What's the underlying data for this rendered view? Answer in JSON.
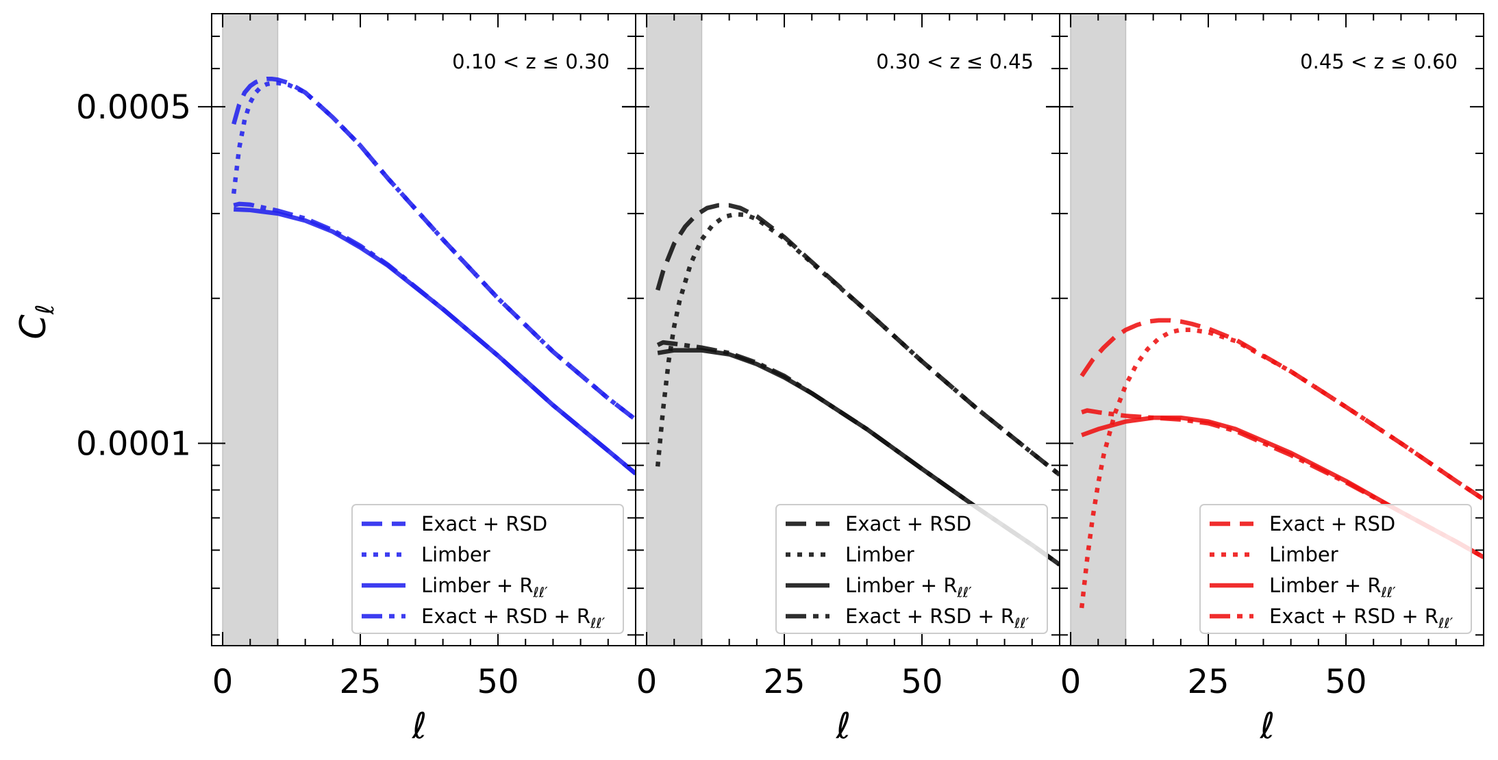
{
  "chart_data": {
    "type": "line",
    "ylabel": "C_ℓ",
    "xlabel": "ℓ",
    "yscale": "log",
    "ylim": [
      3.8e-05,
      0.00078
    ],
    "xlim": [
      -2,
      75
    ],
    "xticks": [
      "0",
      "25",
      "50"
    ],
    "yticks": [
      {
        "value": 0.0005,
        "label": "0.0005"
      },
      {
        "value": 0.0001,
        "label": "0.0001"
      }
    ],
    "shaded_region": [
      0,
      10
    ],
    "legend_labels": [
      "Exact + RSD",
      "Limber",
      "Limber + R",
      "Exact + RSD + R"
    ],
    "legend_subscript": "ℓℓ′",
    "panels": [
      {
        "z_label": "0.10 < z ≤ 0.30",
        "color": "#2222ee",
        "series": [
          {
            "name": "Exact + RSD",
            "style": "dashed",
            "x": [
              2,
              3,
              4,
              5,
              6,
              7,
              8,
              9,
              10,
              12,
              15,
              20,
              25,
              30,
              40,
              50,
              60,
              70,
              75
            ],
            "y": [
              0.00046,
              0.000505,
              0.000535,
              0.000552,
              0.000562,
              0.000568,
              0.000571,
              0.000571,
              0.000569,
              0.00056,
              0.000535,
              0.000475,
              0.000415,
              0.000355,
              0.000265,
              0.0002,
              0.000155,
              0.000124,
              0.000112
            ]
          },
          {
            "name": "Limber",
            "style": "dotted",
            "x": [
              2,
              3,
              4,
              5,
              6,
              7,
              8,
              9,
              10,
              12,
              15,
              20,
              25,
              30,
              40,
              50,
              60,
              70,
              75
            ],
            "y": [
              0.00033,
              0.00041,
              0.00047,
              0.00051,
              0.000535,
              0.00055,
              0.000557,
              0.00056,
              0.00056,
              0.000555,
              0.000535,
              0.000475,
              0.000415,
              0.000355,
              0.000265,
              0.0002,
              0.000155,
              0.000124,
              0.000112
            ]
          },
          {
            "name": "Limber + R",
            "style": "solid",
            "x": [
              2,
              5,
              10,
              15,
              20,
              25,
              30,
              40,
              50,
              60,
              70,
              75
            ],
            "y": [
              0.000306,
              0.000305,
              0.0003,
              0.00029,
              0.000275,
              0.000255,
              0.000234,
              0.00019,
              0.000152,
              0.00012,
              9.65e-05,
              8.65e-05
            ]
          },
          {
            "name": "Exact + RSD + R",
            "style": "dashdot",
            "x": [
              2,
              3,
              5,
              10,
              15,
              20,
              25,
              30,
              40,
              50,
              60,
              70,
              75
            ],
            "y": [
              0.000312,
              0.000314,
              0.000313,
              0.000304,
              0.000293,
              0.000277,
              0.000257,
              0.000235,
              0.00019,
              0.000152,
              0.00012,
              9.65e-05,
              8.65e-05
            ]
          }
        ]
      },
      {
        "z_label": "0.30 < z ≤ 0.45",
        "color": "#111111",
        "series": [
          {
            "name": "Exact + RSD",
            "style": "dashed",
            "x": [
              2,
              3,
              5,
              7,
              9,
              11,
              13,
              15,
              17,
              20,
              25,
              30,
              40,
              50,
              60,
              70,
              75
            ],
            "y": [
              0.000208,
              0.000228,
              0.00026,
              0.000282,
              0.000298,
              0.000308,
              0.000312,
              0.000312,
              0.000308,
              0.000296,
              0.000268,
              0.000238,
              0.000188,
              0.000148,
              0.000118,
              9.55e-05,
              8.6e-05
            ]
          },
          {
            "name": "Limber",
            "style": "dotted",
            "x": [
              2,
              3,
              4,
              5,
              6,
              8,
              10,
              12,
              14,
              16,
              18,
              20,
              25,
              30,
              40,
              50,
              60,
              70,
              75
            ],
            "y": [
              8.95e-05,
              0.000118,
              0.000148,
              0.000175,
              0.000198,
              0.000236,
              0.000265,
              0.000284,
              0.000295,
              0.000299,
              0.000298,
              0.000292,
              0.000266,
              0.000237,
              0.000188,
              0.000148,
              0.000118,
              9.55e-05,
              8.6e-05
            ]
          },
          {
            "name": "Limber + R",
            "style": "solid",
            "x": [
              2,
              5,
              10,
              15,
              20,
              25,
              30,
              40,
              50,
              60,
              70,
              75
            ],
            "y": [
              0.000154,
              0.000156,
              0.000156,
              0.000153,
              0.000146,
              0.000137,
              0.000127,
              0.000107,
              8.85e-05,
              7.35e-05,
              6.15e-05,
              5.6e-05
            ]
          },
          {
            "name": "Exact + RSD + R",
            "style": "dashdot",
            "x": [
              2,
              3,
              5,
              10,
              15,
              20,
              25,
              30,
              40,
              50,
              60,
              70,
              75
            ],
            "y": [
              0.00016,
              0.000162,
              0.000161,
              0.000158,
              0.000154,
              0.000147,
              0.000138,
              0.000127,
              0.000107,
              8.85e-05,
              7.35e-05,
              6.15e-05,
              5.6e-05
            ]
          }
        ]
      },
      {
        "z_label": "0.45 < z ≤ 0.60",
        "color": "#ee1111",
        "series": [
          {
            "name": "Exact + RSD",
            "style": "dashed",
            "x": [
              2,
              4,
              6,
              8,
              10,
              12,
              14,
              16,
              18,
              20,
              22,
              25,
              30,
              40,
              50,
              60,
              70,
              75
            ],
            "y": [
              0.000138,
              0.000149,
              0.000158,
              0.000166,
              0.000172,
              0.000176,
              0.000179,
              0.00018,
              0.00018,
              0.000179,
              0.000177,
              0.000173,
              0.000164,
              0.000141,
              0.000119,
              0.0001,
              8.35e-05,
              7.65e-05
            ]
          },
          {
            "name": "Limber",
            "style": "dotted",
            "x": [
              2,
              3,
              4,
              5,
              6,
              8,
              10,
              12,
              14,
              16,
              18,
              20,
              22,
              25,
              30,
              40,
              50,
              60,
              70,
              75
            ],
            "y": [
              4.55e-05,
              5.75e-05,
              7e-05,
              8.25e-05,
              9.45e-05,
              0.000115,
              0.000132,
              0.000146,
              0.000157,
              0.000165,
              0.00017,
              0.000172,
              0.000172,
              0.00017,
              0.000163,
              0.000141,
              0.000119,
              0.0001,
              8.35e-05,
              7.65e-05
            ]
          },
          {
            "name": "Limber + R",
            "style": "solid",
            "x": [
              2,
              5,
              10,
              15,
              20,
              25,
              30,
              40,
              50,
              60,
              70,
              75
            ],
            "y": [
              0.000104,
              0.000107,
              0.000111,
              0.000113,
              0.000113,
              0.000111,
              0.000107,
              9.55e-05,
              8.35e-05,
              7.2e-05,
              6.25e-05,
              5.8e-05
            ]
          },
          {
            "name": "Exact + RSD + R",
            "style": "dashdot",
            "x": [
              2,
              3,
              5,
              10,
              15,
              20,
              25,
              30,
              40,
              50,
              60,
              70,
              75
            ],
            "y": [
              0.000116,
              0.000117,
              0.000116,
              0.000114,
              0.000113,
              0.000112,
              0.00011,
              0.000106,
              9.45e-05,
              8.3e-05,
              7.2e-05,
              6.25e-05,
              5.8e-05
            ]
          }
        ]
      }
    ]
  }
}
